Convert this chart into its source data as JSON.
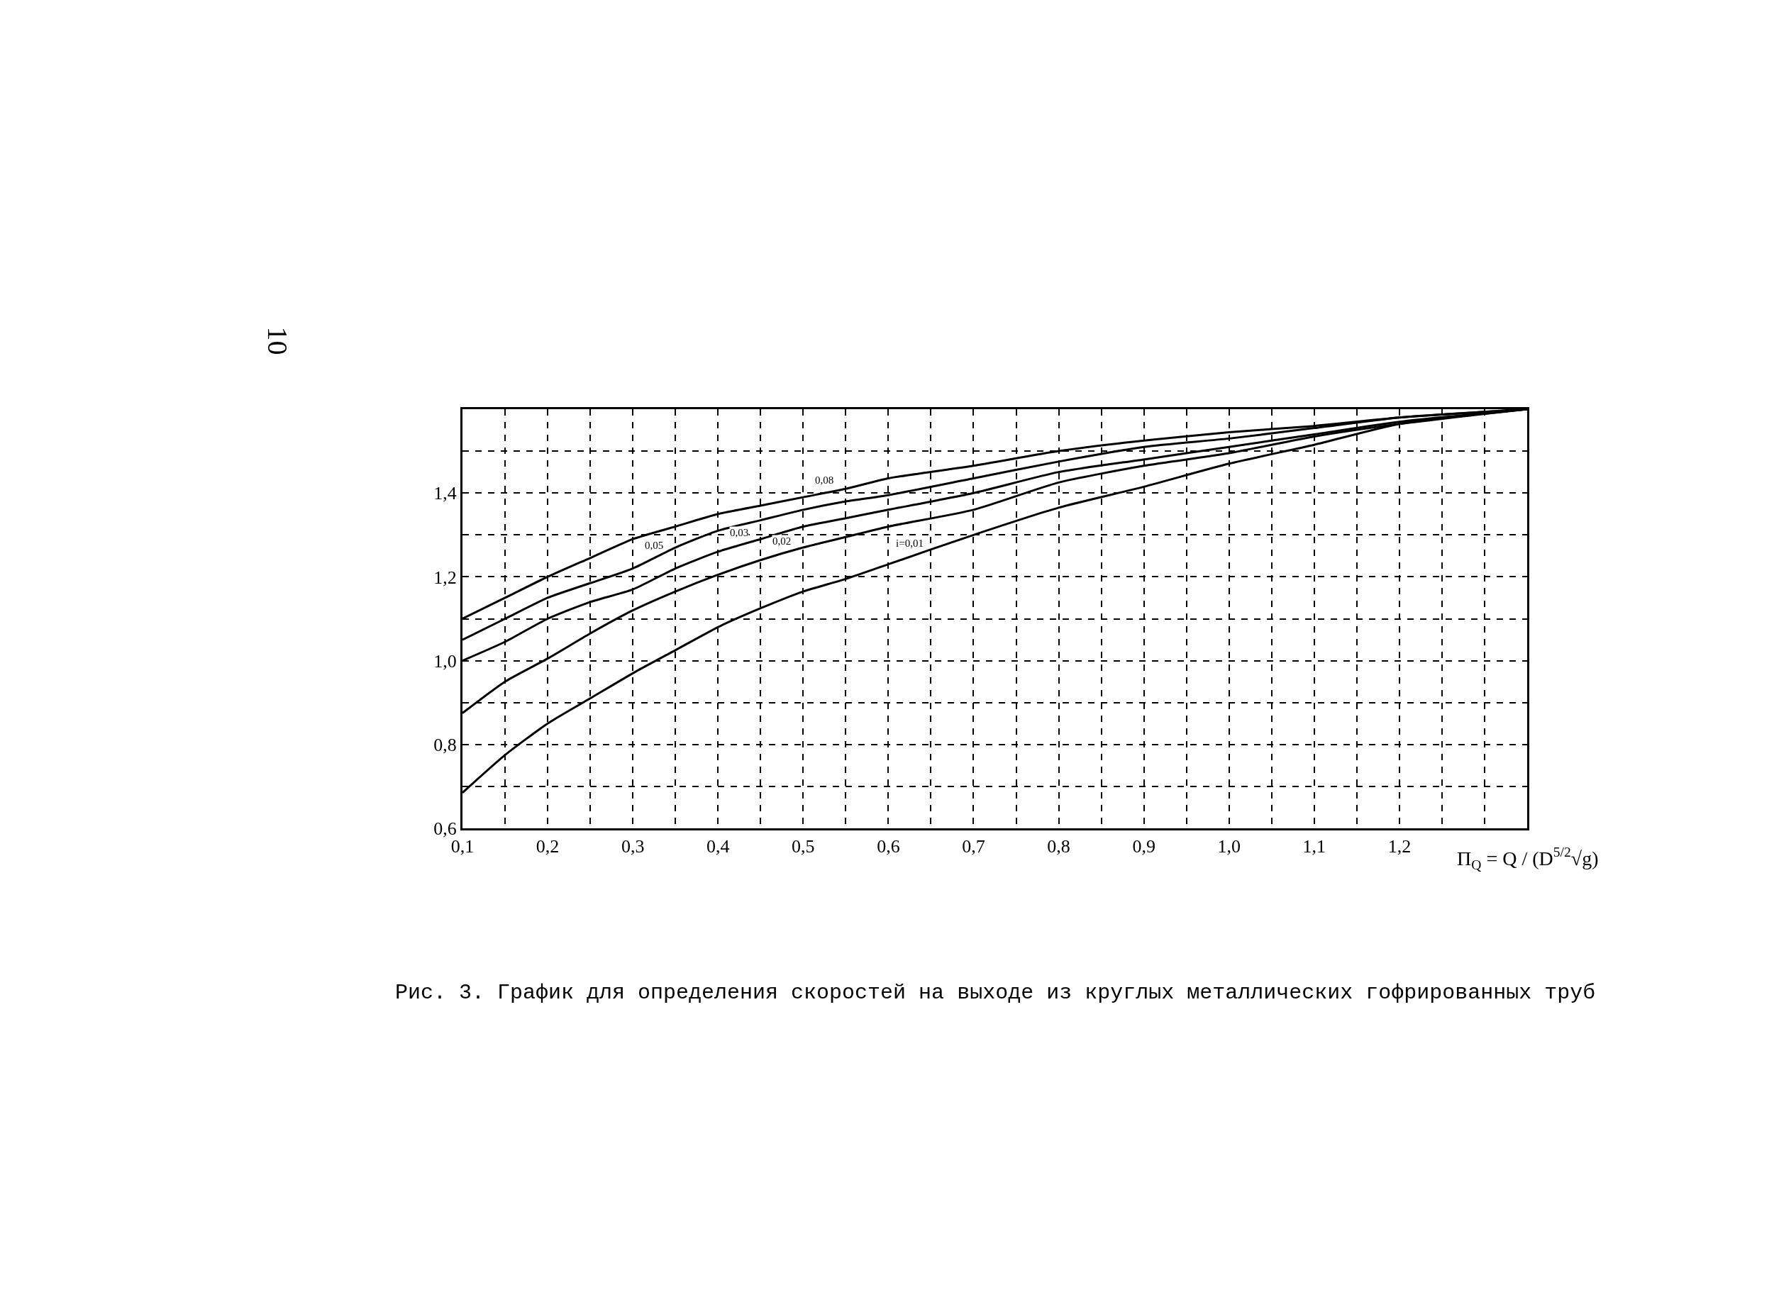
{
  "chart_data": {
    "type": "line",
    "title": "Рис. 3. График для определения скоростей на выходе из круглых металлических гофрированных труб",
    "xlabel": "Π$_{Q}$ = Q / (D$^{5/2}$√g)",
    "x": [
      0.1,
      0.15,
      0.2,
      0.25,
      0.3,
      0.35,
      0.4,
      0.45,
      0.5,
      0.55,
      0.6,
      0.7,
      0.8,
      0.9,
      1.0,
      1.1,
      1.2,
      1.35
    ],
    "series": [
      {
        "color": "#000000",
        "values": [
          1.1,
          1.15,
          1.2,
          1.245,
          1.29,
          1.32,
          1.35,
          1.37,
          1.39,
          1.41,
          1.435,
          1.465,
          1.5,
          1.525,
          1.545,
          1.56,
          1.58,
          1.6
        ]
      },
      {
        "color": "#000000",
        "values": [
          1.05,
          1.1,
          1.15,
          1.185,
          1.22,
          1.27,
          1.31,
          1.335,
          1.36,
          1.38,
          1.395,
          1.435,
          1.475,
          1.51,
          1.53,
          1.555,
          1.58,
          1.6
        ]
      },
      {
        "color": "#000000",
        "values": [
          1.0,
          1.045,
          1.1,
          1.14,
          1.17,
          1.22,
          1.26,
          1.29,
          1.32,
          1.34,
          1.36,
          1.4,
          1.45,
          1.48,
          1.51,
          1.54,
          1.57,
          1.6
        ]
      },
      {
        "color": "#000000",
        "values": [
          0.875,
          0.95,
          1.005,
          1.065,
          1.12,
          1.165,
          1.205,
          1.24,
          1.27,
          1.295,
          1.32,
          1.36,
          1.425,
          1.465,
          1.495,
          1.535,
          1.565,
          1.6
        ]
      },
      {
        "color": "#000000",
        "values": [
          0.685,
          0.775,
          0.85,
          0.91,
          0.97,
          1.025,
          1.08,
          1.125,
          1.165,
          1.195,
          1.23,
          1.3,
          1.365,
          1.415,
          1.47,
          1.515,
          1.565,
          1.6
        ]
      }
    ],
    "xlim": [
      0.1,
      1.35
    ],
    "xticks": [
      {
        "value": 0.1,
        "label": "0,1"
      },
      {
        "value": 0.15,
        "label": null
      },
      {
        "value": 0.2,
        "label": "0,2"
      },
      {
        "value": 0.25,
        "label": null
      },
      {
        "value": 0.3,
        "label": "0,3"
      },
      {
        "value": 0.35,
        "label": null
      },
      {
        "value": 0.4,
        "label": "0,4"
      },
      {
        "value": 0.45,
        "label": null
      },
      {
        "value": 0.5,
        "label": "0,5"
      },
      {
        "value": 0.55,
        "label": null
      },
      {
        "value": 0.6,
        "label": "0,6"
      },
      {
        "value": 0.65,
        "label": null
      },
      {
        "value": 0.7,
        "label": "0,7"
      },
      {
        "value": 0.75,
        "label": null
      },
      {
        "value": 0.8,
        "label": "0,8"
      },
      {
        "value": 0.85,
        "label": null
      },
      {
        "value": 0.9,
        "label": "0,9"
      },
      {
        "value": 0.95,
        "label": null
      },
      {
        "value": 1.0,
        "label": "1,0"
      },
      {
        "value": 1.05,
        "label": null
      },
      {
        "value": 1.1,
        "label": "1,1"
      },
      {
        "value": 1.15,
        "label": null
      },
      {
        "value": 1.2,
        "label": "1,2"
      },
      {
        "value": 1.25,
        "label": null
      },
      {
        "value": 1.3,
        "label": null
      }
    ],
    "ylim": [
      0.6,
      1.6
    ],
    "yticks": [
      {
        "value": 0.6,
        "label": "0,6"
      },
      {
        "value": 0.7,
        "label": null
      },
      {
        "value": 0.8,
        "label": "0,8"
      },
      {
        "value": 0.9,
        "label": null
      },
      {
        "value": 1.0,
        "label": "1,0"
      },
      {
        "value": 1.1,
        "label": null
      },
      {
        "value": 1.2,
        "label": "1,2"
      },
      {
        "value": 1.3,
        "label": null
      },
      {
        "value": 1.4,
        "label": "1,4"
      },
      {
        "value": 1.5,
        "label": null
      }
    ],
    "grid": true,
    "line_style": "solid",
    "annotations": [
      "10",
      {
        "text": "0,08",
        "x": 0.525,
        "y": 1.4
      },
      {
        "text": "0,05",
        "x": 0.325,
        "y": 1.245
      },
      {
        "text": "0,03",
        "x": 0.425,
        "y": 1.275
      },
      {
        "text": "0,02",
        "x": 0.475,
        "y": 1.255
      },
      {
        "text": "i=0,01",
        "x": 0.625,
        "y": 1.25
      }
    ]
  }
}
